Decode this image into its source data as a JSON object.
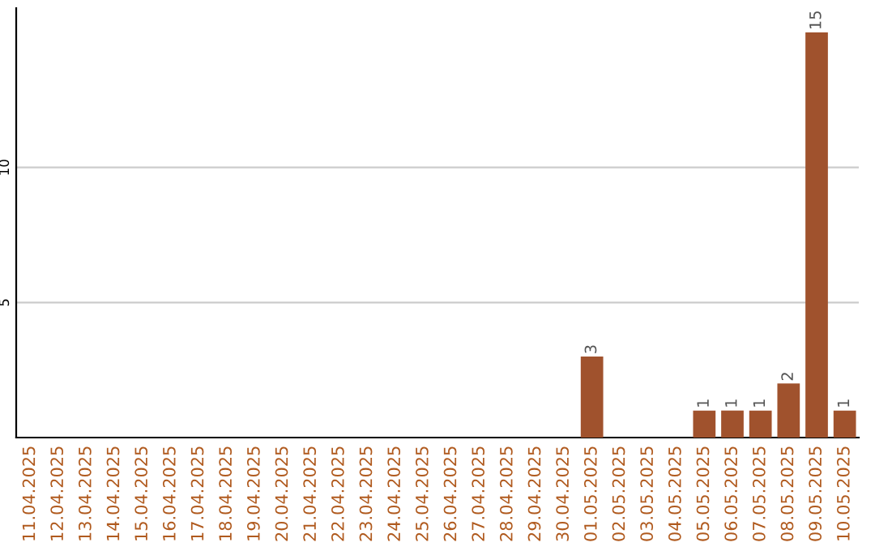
{
  "chart_data": {
    "type": "bar",
    "categories": [
      "11.04.2025",
      "12.04.2025",
      "13.04.2025",
      "14.04.2025",
      "15.04.2025",
      "16.04.2025",
      "17.04.2025",
      "18.04.2025",
      "19.04.2025",
      "20.04.2025",
      "21.04.2025",
      "22.04.2025",
      "23.04.2025",
      "24.04.2025",
      "25.04.2025",
      "26.04.2025",
      "27.04.2025",
      "28.04.2025",
      "29.04.2025",
      "30.04.2025",
      "01.05.2025",
      "02.05.2025",
      "03.05.2025",
      "04.05.2025",
      "05.05.2025",
      "06.05.2025",
      "07.05.2025",
      "08.05.2025",
      "09.05.2025",
      "10.05.2025"
    ],
    "values": [
      0,
      0,
      0,
      0,
      0,
      0,
      0,
      0,
      0,
      0,
      0,
      0,
      0,
      0,
      0,
      0,
      0,
      0,
      0,
      0,
      3,
      0,
      0,
      0,
      1,
      1,
      1,
      2,
      15,
      1
    ],
    "value_labels": [
      null,
      null,
      null,
      null,
      null,
      null,
      null,
      null,
      null,
      null,
      null,
      null,
      null,
      null,
      null,
      null,
      null,
      null,
      null,
      null,
      "3",
      null,
      null,
      null,
      "1",
      "1",
      "1",
      "2",
      "15",
      "1"
    ],
    "color": "#a0522d",
    "ylim": [
      0,
      15.9
    ],
    "yticks": [
      5,
      10
    ],
    "grid": "y"
  }
}
